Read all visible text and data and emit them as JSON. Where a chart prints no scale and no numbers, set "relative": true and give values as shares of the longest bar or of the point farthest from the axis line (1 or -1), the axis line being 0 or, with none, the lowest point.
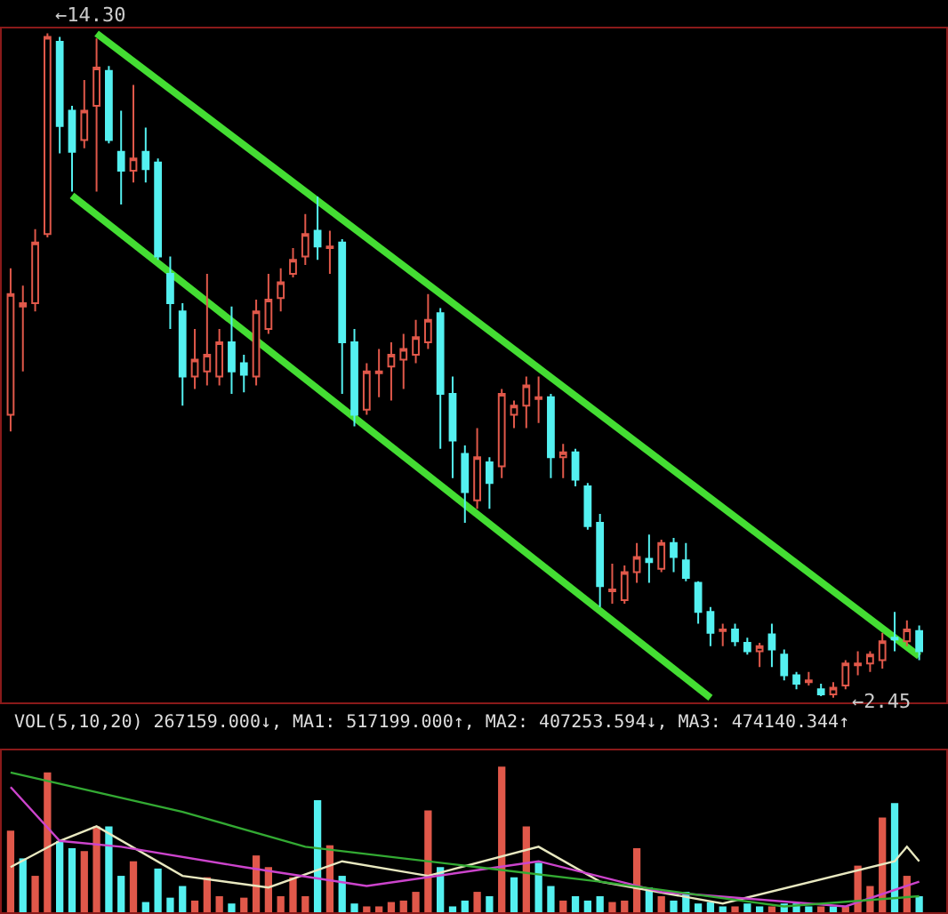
{
  "chart_data": [
    {
      "type": "candlestick",
      "categories": [
        null,
        null,
        null,
        null,
        null,
        null,
        null,
        null,
        null,
        null,
        null,
        null,
        null,
        null,
        null,
        null,
        null,
        null,
        null,
        null,
        null,
        null,
        null,
        null,
        null,
        null,
        null,
        null,
        null,
        null,
        null,
        null,
        null,
        null,
        null,
        null,
        null,
        null,
        null,
        null,
        null,
        null,
        null,
        null,
        null,
        null,
        null,
        null,
        null,
        null,
        null,
        null,
        null,
        null,
        null,
        null,
        null,
        null,
        null,
        null,
        null,
        null,
        null,
        null,
        null,
        null,
        null,
        null,
        null,
        null,
        null,
        null,
        null,
        null,
        null
      ],
      "ohlc": [
        [
          7.5,
          10.11,
          7.2,
          9.65
        ],
        [
          9.43,
          9.8,
          8.27,
          9.49
        ],
        [
          9.49,
          10.81,
          9.34,
          10.57
        ],
        [
          10.72,
          14.3,
          10.66,
          14.24
        ],
        [
          14.15,
          14.24,
          12.16,
          12.65
        ],
        [
          12.92,
          13.01,
          11.48,
          12.19
        ],
        [
          12.4,
          13.47,
          12.25,
          12.92
        ],
        [
          13.01,
          14.21,
          11.48,
          13.69
        ],
        [
          13.63,
          13.72,
          12.34,
          12.4
        ],
        [
          12.19,
          12.92,
          11.25,
          11.85
        ],
        [
          11.85,
          13.38,
          11.64,
          12.07
        ],
        [
          12.19,
          12.62,
          11.64,
          11.88
        ],
        [
          12.0,
          12.07,
          10.26,
          10.32
        ],
        [
          10.01,
          10.32,
          9.03,
          9.49
        ],
        [
          9.34,
          9.49,
          7.66,
          8.18
        ],
        [
          8.18,
          9.03,
          7.96,
          8.48
        ],
        [
          8.27,
          10.01,
          8.02,
          8.57
        ],
        [
          8.18,
          9.03,
          8.02,
          8.79
        ],
        [
          8.79,
          9.43,
          7.87,
          8.27
        ],
        [
          8.42,
          8.57,
          7.9,
          8.21
        ],
        [
          8.18,
          9.55,
          8.02,
          9.34
        ],
        [
          9.03,
          10.01,
          8.94,
          9.55
        ],
        [
          9.58,
          10.11,
          9.34,
          9.86
        ],
        [
          10.01,
          10.47,
          9.95,
          10.26
        ],
        [
          10.32,
          11.08,
          10.17,
          10.72
        ],
        [
          10.78,
          11.39,
          10.26,
          10.5
        ],
        [
          10.47,
          10.78,
          10.01,
          10.5
        ],
        [
          10.57,
          10.63,
          7.87,
          8.79
        ],
        [
          8.79,
          9.03,
          7.29,
          7.5
        ],
        [
          7.59,
          8.42,
          7.5,
          8.27
        ],
        [
          8.24,
          8.67,
          7.81,
          8.27
        ],
        [
          8.36,
          8.79,
          7.75,
          8.57
        ],
        [
          8.48,
          8.94,
          7.96,
          8.67
        ],
        [
          8.57,
          9.19,
          8.42,
          8.88
        ],
        [
          8.79,
          9.65,
          8.67,
          9.19
        ],
        [
          9.31,
          9.4,
          6.89,
          7.87
        ],
        [
          7.87,
          8.18,
          6.37,
          7.04
        ],
        [
          6.8,
          6.95,
          5.57,
          6.12
        ],
        [
          5.97,
          7.26,
          5.82,
          6.74
        ],
        [
          6.65,
          6.74,
          5.82,
          6.28
        ],
        [
          6.58,
          7.96,
          6.37,
          7.87
        ],
        [
          7.5,
          7.75,
          7.26,
          7.66
        ],
        [
          7.66,
          8.18,
          7.26,
          8.02
        ],
        [
          7.78,
          8.18,
          7.35,
          7.81
        ],
        [
          7.81,
          7.87,
          6.37,
          6.74
        ],
        [
          6.74,
          6.98,
          6.37,
          6.83
        ],
        [
          6.83,
          6.89,
          6.22,
          6.34
        ],
        [
          6.22,
          6.28,
          5.45,
          5.51
        ],
        [
          5.57,
          5.73,
          4.07,
          4.44
        ],
        [
          4.35,
          4.84,
          4.13,
          4.38
        ],
        [
          4.19,
          4.81,
          4.13,
          4.69
        ],
        [
          4.69,
          5.21,
          4.5,
          4.96
        ],
        [
          4.93,
          5.36,
          4.5,
          4.87
        ],
        [
          4.75,
          5.27,
          4.69,
          5.21
        ],
        [
          5.21,
          5.3,
          4.69,
          4.96
        ],
        [
          4.9,
          5.21,
          4.53,
          4.59
        ],
        [
          4.5,
          4.53,
          3.77,
          3.98
        ],
        [
          3.98,
          4.07,
          3.37,
          3.61
        ],
        [
          3.64,
          3.77,
          3.37,
          3.67
        ],
        [
          3.67,
          3.77,
          3.37,
          3.46
        ],
        [
          3.43,
          3.52,
          3.22,
          3.28
        ],
        [
          3.28,
          3.43,
          3.0,
          3.37
        ],
        [
          3.58,
          3.77,
          3.0,
          3.31
        ],
        [
          3.22,
          3.31,
          2.76,
          2.85
        ],
        [
          2.85,
          2.91,
          2.6,
          2.7
        ],
        [
          2.73,
          2.91,
          2.67,
          2.76
        ],
        [
          2.6,
          2.7,
          2.48,
          2.51
        ],
        [
          2.51,
          2.73,
          2.45,
          2.63
        ],
        [
          2.67,
          3.12,
          2.6,
          3.06
        ],
        [
          3.03,
          3.28,
          2.85,
          3.06
        ],
        [
          3.06,
          3.28,
          2.91,
          3.22
        ],
        [
          3.12,
          3.61,
          2.97,
          3.46
        ],
        [
          3.52,
          3.98,
          3.28,
          3.49
        ],
        [
          3.46,
          3.83,
          3.37,
          3.67
        ],
        [
          3.64,
          3.74,
          3.12,
          3.28
        ]
      ],
      "series": [
        {
          "type": "line",
          "color": "#44dd33",
          "values": [
            null,
            null,
            null,
            null,
            null,
            null,
            null,
            14.3,
            null,
            null,
            null,
            null,
            null,
            null,
            null,
            null,
            null,
            null,
            null,
            null,
            null,
            null,
            null,
            null,
            null,
            null,
            null,
            null,
            null,
            null,
            null,
            null,
            null,
            null,
            null,
            null,
            null,
            null,
            null,
            null,
            null,
            null,
            null,
            null,
            null,
            null,
            null,
            null,
            null,
            null,
            null,
            null,
            null,
            null,
            null,
            null,
            null,
            null,
            null,
            null,
            null,
            null,
            null,
            null,
            null,
            null,
            null,
            null,
            null,
            null,
            null,
            null,
            null,
            null,
            3.19
          ]
        },
        {
          "type": "line",
          "color": "#44dd33",
          "values": [
            null,
            null,
            null,
            null,
            null,
            11.41,
            null,
            null,
            null,
            null,
            null,
            null,
            null,
            null,
            null,
            null,
            null,
            null,
            null,
            null,
            null,
            null,
            null,
            null,
            null,
            null,
            null,
            null,
            null,
            null,
            null,
            null,
            null,
            null,
            null,
            null,
            null,
            null,
            null,
            null,
            null,
            null,
            null,
            null,
            null,
            null,
            null,
            null,
            null,
            null,
            null,
            null,
            null,
            null,
            null,
            null,
            null,
            2.45,
            null,
            null,
            null,
            null,
            null,
            null,
            null,
            null,
            null,
            null,
            null,
            null,
            null,
            null,
            null,
            null,
            null
          ]
        }
      ],
      "annotations": [
        "←14.30",
        "←2.45"
      ]
    },
    {
      "type": "bar",
      "relative": true,
      "title": "VOL(5,10,20) 267159.000↓, MA1: 517199.000↑, MA2: 407253.594↓, MA3: 474140.344↑",
      "categories": [
        null,
        null,
        null,
        null,
        null,
        null,
        null,
        null,
        null,
        null,
        null,
        null,
        null,
        null,
        null,
        null,
        null,
        null,
        null,
        null,
        null,
        null,
        null,
        null,
        null,
        null,
        null,
        null,
        null,
        null,
        null,
        null,
        null,
        null,
        null,
        null,
        null,
        null,
        null,
        null,
        null,
        null,
        null,
        null,
        null,
        null,
        null,
        null,
        null,
        null,
        null,
        null,
        null,
        null,
        null,
        null,
        null,
        null,
        null,
        null,
        null,
        null,
        null,
        null,
        null,
        null,
        null,
        null,
        null,
        null,
        null,
        null,
        null,
        null,
        null
      ],
      "series": [
        {
          "type": "bar",
          "values": [
            0.56,
            0.37,
            0.25,
            0.96,
            0.49,
            0.44,
            0.42,
            0.59,
            0.59,
            0.25,
            0.35,
            0.07,
            0.3,
            0.1,
            0.18,
            0.08,
            0.24,
            0.11,
            0.06,
            0.1,
            0.39,
            0.31,
            0.11,
            0.24,
            0.11,
            0.77,
            0.46,
            0.25,
            0.06,
            0.04,
            0.04,
            0.07,
            0.08,
            0.14,
            0.7,
            0.31,
            0.04,
            0.08,
            0.14,
            0.11,
            1,
            0.24,
            0.59,
            0.34,
            0.18,
            0.08,
            0.11,
            0.08,
            0.11,
            0.07,
            0.08,
            0.44,
            0.17,
            0.11,
            0.08,
            0.14,
            0.06,
            0.07,
            0.04,
            0.04,
            0.06,
            0.04,
            0.04,
            0.06,
            0.06,
            0.04,
            0.04,
            0.04,
            0.04,
            0.32,
            0.18,
            0.65,
            0.75,
            0.25,
            0.11
          ],
          "colors": [
            "#e0584a",
            "#54f0f0",
            "#e0584a",
            "#e0584a",
            "#54f0f0",
            "#54f0f0",
            "#e0584a",
            "#e0584a",
            "#54f0f0",
            "#54f0f0",
            "#e0584a",
            "#54f0f0",
            "#54f0f0",
            "#54f0f0",
            "#54f0f0",
            "#e0584a",
            "#e0584a",
            "#e0584a",
            "#54f0f0",
            "#e0584a",
            "#e0584a",
            "#e0584a",
            "#e0584a",
            "#e0584a",
            "#e0584a",
            "#54f0f0",
            "#e0584a",
            "#54f0f0",
            "#54f0f0",
            "#e0584a",
            "#e0584a",
            "#e0584a",
            "#e0584a",
            "#e0584a",
            "#e0584a",
            "#54f0f0",
            "#54f0f0",
            "#54f0f0",
            "#e0584a",
            "#54f0f0",
            "#e0584a",
            "#54f0f0",
            "#e0584a",
            "#54f0f0",
            "#54f0f0",
            "#e0584a",
            "#54f0f0",
            "#54f0f0",
            "#54f0f0",
            "#e0584a",
            "#e0584a",
            "#e0584a",
            "#54f0f0",
            "#e0584a",
            "#54f0f0",
            "#54f0f0",
            "#54f0f0",
            "#54f0f0",
            "#54f0f0",
            "#e0584a",
            "#54f0f0",
            "#54f0f0",
            "#e0584a",
            "#54f0f0",
            "#54f0f0",
            "#54f0f0",
            "#e0584a",
            "#54f0f0",
            "#e0584a",
            "#e0584a",
            "#e0584a",
            "#e0584a",
            "#54f0f0",
            "#e0584a",
            "#54f0f0"
          ]
        },
        {
          "type": "line",
          "color": "#e8e8c0",
          "values": [
            0.31,
            null,
            null,
            null,
            0.49,
            null,
            null,
            0.59,
            null,
            null,
            null,
            null,
            null,
            null,
            0.25,
            null,
            null,
            null,
            null,
            null,
            null,
            0.17,
            null,
            null,
            null,
            null,
            null,
            0.35,
            null,
            null,
            null,
            null,
            null,
            null,
            0.25,
            null,
            null,
            null,
            null,
            null,
            null,
            null,
            null,
            0.45,
            null,
            null,
            null,
            null,
            0.21,
            null,
            null,
            null,
            null,
            null,
            null,
            null,
            null,
            null,
            0.06,
            null,
            null,
            null,
            null,
            null,
            null,
            null,
            null,
            null,
            null,
            null,
            null,
            null,
            0.35,
            0.45,
            0.35
          ]
        },
        {
          "type": "line",
          "color": "#cc44cc",
          "values": [
            0.86,
            null,
            null,
            null,
            0.49,
            null,
            null,
            null,
            null,
            0.45,
            null,
            null,
            null,
            null,
            null,
            null,
            null,
            null,
            null,
            0.31,
            null,
            null,
            null,
            null,
            null,
            null,
            null,
            null,
            null,
            0.18,
            null,
            null,
            null,
            null,
            null,
            null,
            null,
            null,
            null,
            null,
            null,
            null,
            null,
            0.35,
            null,
            null,
            null,
            null,
            null,
            null,
            null,
            null,
            null,
            0.14,
            null,
            null,
            null,
            null,
            null,
            null,
            null,
            null,
            null,
            null,
            null,
            null,
            null,
            null,
            0.04,
            null,
            null,
            null,
            null,
            null,
            0.21
          ]
        },
        {
          "type": "line",
          "color": "#33aa33",
          "values": [
            0.96,
            null,
            null,
            null,
            null,
            null,
            null,
            null,
            null,
            null,
            null,
            null,
            null,
            null,
            0.69,
            null,
            null,
            null,
            null,
            null,
            null,
            null,
            null,
            null,
            0.45,
            null,
            null,
            null,
            null,
            null,
            null,
            null,
            null,
            null,
            null,
            null,
            null,
            null,
            0.31,
            null,
            null,
            null,
            null,
            null,
            null,
            null,
            null,
            null,
            0.21,
            null,
            null,
            null,
            null,
            null,
            null,
            null,
            null,
            null,
            null,
            null,
            null,
            null,
            null,
            0.04,
            null,
            null,
            null,
            null,
            null,
            null,
            null,
            null,
            null,
            null,
            0.11
          ]
        }
      ]
    }
  ]
}
